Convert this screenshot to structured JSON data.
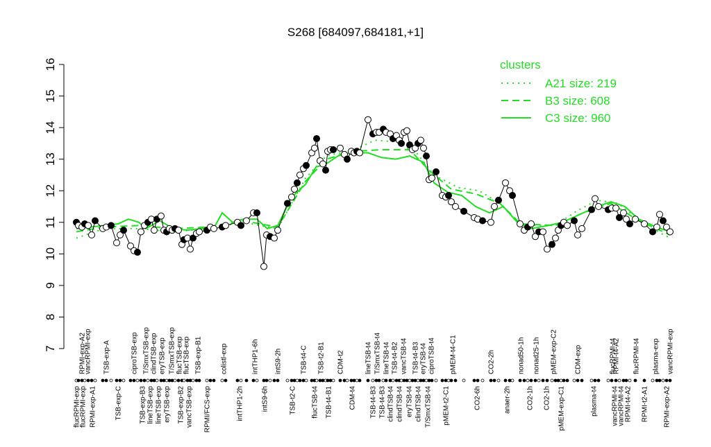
{
  "chart_data": {
    "type": "scatter",
    "title": "S268 [684097,684181,+1]",
    "xlim": [
      100,
      980
    ],
    "ylim": [
      7,
      16
    ],
    "yticks": [
      7,
      8,
      9,
      10,
      11,
      12,
      13,
      14,
      15,
      16
    ],
    "points": {
      "color": "#000000",
      "x": [
        110,
        113,
        118,
        122,
        127,
        132,
        137,
        148,
        153,
        160,
        168,
        173,
        178,
        188,
        193,
        198,
        203,
        208,
        213,
        218,
        222,
        226,
        232,
        236,
        240,
        244,
        248,
        252,
        257,
        262,
        265,
        270,
        274,
        278,
        283,
        287,
        298,
        303,
        308,
        320,
        325,
        342,
        347,
        355,
        365,
        370,
        380,
        384,
        389,
        395,
        400,
        414,
        420,
        424,
        428,
        432,
        437,
        441,
        449,
        453,
        456,
        461,
        465,
        469,
        472,
        476,
        480,
        490,
        496,
        500,
        506,
        510,
        514,
        518,
        530,
        537,
        542,
        546,
        552,
        556,
        562,
        566,
        571,
        575,
        578,
        582,
        586,
        590,
        594,
        598,
        602,
        606,
        610,
        614,
        618,
        622,
        628,
        637,
        642,
        646,
        650,
        656,
        668,
        683,
        688,
        695,
        707,
        712,
        718,
        728,
        734,
        738,
        749,
        755,
        760,
        765,
        771,
        776,
        782,
        788,
        795,
        800,
        804,
        808,
        812,
        817,
        827,
        832,
        838,
        852,
        857,
        862,
        876,
        881,
        887,
        892,
        898,
        902,
        907,
        915,
        928,
        940,
        946,
        950,
        955,
        960,
        965
      ],
      "values": [
        11.0,
        10.9,
        10.85,
        10.95,
        10.9,
        10.6,
        11.05,
        10.8,
        10.85,
        10.9,
        10.35,
        10.6,
        10.75,
        10.25,
        10.1,
        10.05,
        10.7,
        10.9,
        11.0,
        11.1,
        10.75,
        11.1,
        11.2,
        10.75,
        10.7,
        10.8,
        10.75,
        10.8,
        10.75,
        10.3,
        10.45,
        10.5,
        10.15,
        10.5,
        10.65,
        10.7,
        10.75,
        10.85,
        10.8,
        10.85,
        10.9,
        11.0,
        10.9,
        11.05,
        11.3,
        11.3,
        9.6,
        10.6,
        10.55,
        10.5,
        10.75,
        11.6,
        11.8,
        12.05,
        12.25,
        12.5,
        12.7,
        12.8,
        13.2,
        13.35,
        13.65,
        12.95,
        12.85,
        12.65,
        13.25,
        13.3,
        13.3,
        13.35,
        13.15,
        13.0,
        13.25,
        13.2,
        13.25,
        13.2,
        14.25,
        13.8,
        13.85,
        13.85,
        13.95,
        13.85,
        13.8,
        13.65,
        13.75,
        13.6,
        13.5,
        13.85,
        13.9,
        13.45,
        13.3,
        13.35,
        13.5,
        13.6,
        13.35,
        13.1,
        12.35,
        12.4,
        12.6,
        11.85,
        11.8,
        11.85,
        11.65,
        11.5,
        11.35,
        11.15,
        11.1,
        11.05,
        11.0,
        11.5,
        11.7,
        12.25,
        12.0,
        11.85,
        10.95,
        10.75,
        10.85,
        10.95,
        10.55,
        10.7,
        10.7,
        10.15,
        10.3,
        10.5,
        10.75,
        10.9,
        11.0,
        10.9,
        11.05,
        10.6,
        10.8,
        11.4,
        11.75,
        11.5,
        11.4,
        11.45,
        11.45,
        11.15,
        11.3,
        11.1,
        10.95,
        11.1,
        10.95,
        10.7,
        10.85,
        11.25,
        11.05,
        10.85,
        10.7
      ]
    },
    "legend_title": "clusters",
    "series": [
      {
        "name": "A21 size: 219",
        "color": "#22dd22",
        "dash": "dotted",
        "x": [
          110,
          150,
          200,
          250,
          300,
          350,
          400,
          440,
          470,
          510,
          540,
          570,
          600,
          625,
          660,
          690,
          720,
          750,
          800,
          830,
          860,
          890,
          930,
          965
        ],
        "values": [
          10.5,
          10.8,
          10.8,
          10.7,
          10.8,
          11.0,
          10.8,
          12.4,
          13.1,
          13.3,
          13.6,
          13.55,
          13.2,
          12.5,
          12.1,
          12.0,
          11.6,
          10.9,
          10.9,
          11.35,
          11.7,
          11.6,
          10.9,
          10.5
        ]
      },
      {
        "name": "B3 size: 608",
        "color": "#22dd22",
        "dash": "dashed",
        "x": [
          110,
          150,
          200,
          250,
          300,
          350,
          400,
          440,
          470,
          510,
          550,
          590,
          620,
          650,
          685,
          720,
          750,
          800,
          840,
          880,
          920,
          965
        ],
        "values": [
          10.7,
          10.85,
          10.9,
          10.8,
          10.85,
          11.05,
          10.85,
          12.3,
          13.0,
          13.25,
          13.3,
          13.3,
          12.6,
          12.05,
          11.9,
          11.6,
          10.95,
          10.9,
          11.3,
          11.6,
          11.05,
          10.6
        ]
      },
      {
        "name": "C3 size: 960",
        "color": "#22dd22",
        "dash": "solid",
        "x": [
          110,
          130,
          150,
          170,
          185,
          200,
          210,
          230,
          250,
          270,
          290,
          310,
          320,
          335,
          350,
          370,
          385,
          400,
          420,
          440,
          455,
          470,
          490,
          510,
          530,
          550,
          570,
          590,
          610,
          625,
          645,
          665,
          685,
          705,
          725,
          745,
          765,
          790,
          810,
          840,
          860,
          880,
          900,
          920,
          945,
          965
        ],
        "values": [
          10.8,
          10.85,
          10.9,
          10.95,
          11.1,
          11.0,
          10.8,
          11.05,
          10.8,
          10.75,
          10.8,
          10.9,
          11.3,
          11.0,
          11.1,
          11.1,
          10.8,
          10.9,
          11.8,
          12.2,
          12.75,
          12.85,
          13.15,
          13.2,
          13.2,
          13.05,
          13.0,
          13.1,
          12.9,
          12.25,
          11.95,
          11.85,
          11.5,
          11.3,
          11.5,
          11.0,
          10.8,
          10.9,
          11.0,
          11.3,
          11.5,
          11.65,
          11.5,
          11.1,
          10.85,
          10.7
        ]
      }
    ],
    "xticks_top": [
      {
        "value": 118,
        "label": "RPMI-exp-A2"
      },
      {
        "value": 126,
        "label": "vancRPMI-exp"
      },
      {
        "value": 153,
        "label": "TSB-exp-A"
      },
      {
        "value": 193,
        "label": "ciproTSB-exp"
      },
      {
        "value": 210,
        "label": "T/SmxTSB-exp"
      },
      {
        "value": 221,
        "label": "clindTSB-exp"
      },
      {
        "value": 233,
        "label": "eryTSB-exp"
      },
      {
        "value": 247,
        "label": "T/SmxTSB-exp"
      },
      {
        "value": 258,
        "label": "flucTSB-exp"
      },
      {
        "value": 268,
        "label": "flucTSB-exp"
      },
      {
        "value": 285,
        "label": "TSB-exp-B1"
      },
      {
        "value": 322,
        "label": "colistl-exp"
      },
      {
        "value": 367,
        "label": "intTHP1-6h"
      },
      {
        "value": 400,
        "label": "intS9-2h"
      },
      {
        "value": 437,
        "label": "TSB-t4-C"
      },
      {
        "value": 462,
        "label": "TSB-t2-B1"
      },
      {
        "value": 490,
        "label": "CDM-t2"
      },
      {
        "value": 530,
        "label": "lineTSB-t4"
      },
      {
        "value": 543,
        "label": "T/SmxTSB-t4"
      },
      {
        "value": 556,
        "label": "lineTSB-t4"
      },
      {
        "value": 568,
        "label": "TSB-t4-B2"
      },
      {
        "value": 581,
        "label": "vancTSB-t4"
      },
      {
        "value": 598,
        "label": "TSB-t4-B3"
      },
      {
        "value": 609,
        "label": "eryTSB-t4"
      },
      {
        "value": 621,
        "label": "ciproTSB-t4"
      },
      {
        "value": 652,
        "label": "pMEM-t4-C1"
      },
      {
        "value": 707,
        "label": "CO2-2h"
      },
      {
        "value": 750,
        "label": "nonad50-1h"
      },
      {
        "value": 772,
        "label": "nonad25-1h"
      },
      {
        "value": 797,
        "label": "pMEM-exp-C2"
      },
      {
        "value": 832,
        "label": "CDM-exp"
      },
      {
        "value": 882,
        "label": "flucRPMI-t4"
      },
      {
        "value": 887,
        "label": "RPMI-t4-A2"
      },
      {
        "value": 916,
        "label": "flucRPMI-t4"
      },
      {
        "value": 944,
        "label": "plasma-exp"
      },
      {
        "value": 965,
        "label": "vancRPMI-exp"
      }
    ],
    "xticks_bottom": [
      {
        "value": 110,
        "label": "flucRPMI-exp"
      },
      {
        "value": 119,
        "label": "flucRPMI-exp"
      },
      {
        "value": 133,
        "label": "RPMI-exp-A1"
      },
      {
        "value": 170,
        "label": "TSB-exp-C"
      },
      {
        "value": 205,
        "label": "TSB-exp-B3"
      },
      {
        "value": 216,
        "label": "lineTSB-exp"
      },
      {
        "value": 228,
        "label": "lineTSB-exp"
      },
      {
        "value": 240,
        "label": "eryTSB-exp"
      },
      {
        "value": 260,
        "label": "TSB-exp-B2"
      },
      {
        "value": 272,
        "label": "vancTSB-exp"
      },
      {
        "value": 298,
        "label": "RPMI/FCS-exp"
      },
      {
        "value": 345,
        "label": "intTHP1-2h"
      },
      {
        "value": 381,
        "label": "intS9-6h"
      },
      {
        "value": 421,
        "label": "TSB-t2-C"
      },
      {
        "value": 453,
        "label": "flucTSB-t4"
      },
      {
        "value": 473,
        "label": "TSB-t4-B1"
      },
      {
        "value": 507,
        "label": "CDM-t4"
      },
      {
        "value": 537,
        "label": "TSB-t4-B3"
      },
      {
        "value": 550,
        "label": "TSB-t4-B3"
      },
      {
        "value": 562,
        "label": "clindTSB-t4"
      },
      {
        "value": 575,
        "label": "clindTSB-t4"
      },
      {
        "value": 589,
        "label": "eryTSB-t4"
      },
      {
        "value": 602,
        "label": "clindTSB-t4"
      },
      {
        "value": 616,
        "label": "T/SmxTSB-t4"
      },
      {
        "value": 642,
        "label": "pMEM-t2-C1"
      },
      {
        "value": 687,
        "label": "CO2-6h"
      },
      {
        "value": 730,
        "label": "anaer-2h"
      },
      {
        "value": 763,
        "label": "CO2-1h"
      },
      {
        "value": 787,
        "label": "CO2-1h"
      },
      {
        "value": 808,
        "label": "pMEM-exp-C1"
      },
      {
        "value": 855,
        "label": "plasma-t4"
      },
      {
        "value": 885,
        "label": "vancRPMI-t4"
      },
      {
        "value": 894,
        "label": "vancRPMI-t4"
      },
      {
        "value": 904,
        "label": "RPMI-t4-A2"
      },
      {
        "value": 928,
        "label": "RPMI-t2-A1"
      },
      {
        "value": 960,
        "label": "RPMI-exp-A2"
      }
    ]
  }
}
